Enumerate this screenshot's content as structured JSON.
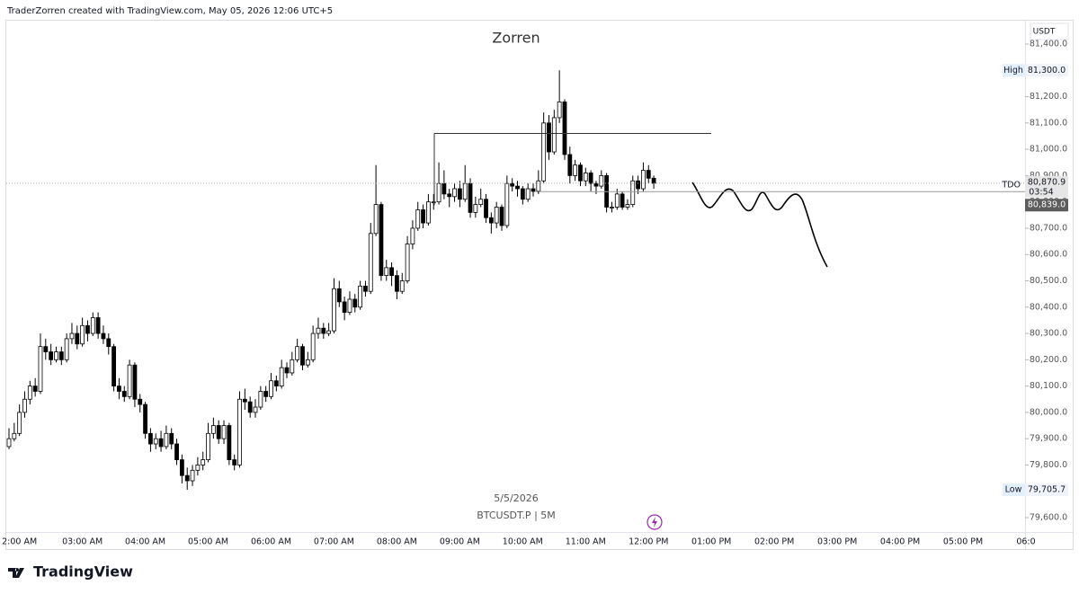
{
  "header": "TraderZorren created with TradingView.com, May 05, 2026 12:06 UTC+5",
  "brand": "TradingView",
  "chart_data": {
    "type": "candlestick",
    "title": "Zorren",
    "date": "5/5/2026",
    "symbol": "BTCUSDT.P | 5M",
    "currency": "USDT",
    "up_color": "#ffffff",
    "down_color": "#000000",
    "x_labels": [
      "2:00 AM",
      "03:00 AM",
      "04:00 AM",
      "05:00 AM",
      "06:00 AM",
      "07:00 AM",
      "08:00 AM",
      "09:00 AM",
      "10:00 AM",
      "11:00 AM",
      "12:00 PM",
      "01:00 PM",
      "02:00 PM",
      "03:00 PM",
      "04:00 PM",
      "05:00 PM",
      "06:0"
    ],
    "ylim": [
      79600,
      81400
    ],
    "yticks": [
      {
        "value": 81400,
        "label": "81,400.0"
      },
      {
        "value": 81300,
        "label": "81,300.0"
      },
      {
        "value": 81200,
        "label": "81,200.0"
      },
      {
        "value": 81100,
        "label": "81,100.0"
      },
      {
        "value": 81000,
        "label": "81,000.0"
      },
      {
        "value": 80900,
        "label": "80,900.0"
      },
      {
        "value": 80800,
        "label": "80,800.0"
      },
      {
        "value": 80700,
        "label": "80,700.0"
      },
      {
        "value": 80600,
        "label": "80,600.0"
      },
      {
        "value": 80500,
        "label": "80,500.0"
      },
      {
        "value": 80400,
        "label": "80,400.0"
      },
      {
        "value": 80300,
        "label": "80,300.0"
      },
      {
        "value": 80200,
        "label": "80,200.0"
      },
      {
        "value": 80100,
        "label": "80,100.0"
      },
      {
        "value": 80000,
        "label": "80,000.0"
      },
      {
        "value": 79900,
        "label": "79,900.0"
      },
      {
        "value": 79800,
        "label": "79,800.0"
      },
      {
        "value": 79700,
        "label": "79,700.0"
      },
      {
        "value": 79600,
        "label": "79,600.0"
      }
    ],
    "high": {
      "label": "High",
      "value": 81300,
      "value_label": "81,300.0"
    },
    "low": {
      "label": "Low",
      "value": 79705.7,
      "value_label": "79,705.7"
    },
    "last_price": {
      "value": 80870.9,
      "value_label": "80,870.9",
      "countdown": "03:54"
    },
    "tdo": {
      "label": "TDO",
      "value": 80839,
      "value_label": "80,839.0"
    },
    "level": 81060,
    "ohlc": [
      [
        79870,
        79940,
        79860,
        79900
      ],
      [
        79900,
        79960,
        79890,
        79920
      ],
      [
        79920,
        80030,
        79910,
        80000
      ],
      [
        80000,
        80080,
        79980,
        80050
      ],
      [
        80050,
        80120,
        80030,
        80100
      ],
      [
        80100,
        80130,
        80060,
        80080
      ],
      [
        80080,
        80300,
        80070,
        80250
      ],
      [
        80250,
        80280,
        80200,
        80230
      ],
      [
        80230,
        80260,
        80180,
        80200
      ],
      [
        80200,
        80250,
        80190,
        80230
      ],
      [
        80230,
        80250,
        80180,
        80200
      ],
      [
        80200,
        80300,
        80190,
        80280
      ],
      [
        80280,
        80340,
        80260,
        80300
      ],
      [
        80300,
        80330,
        80240,
        80260
      ],
      [
        80260,
        80360,
        80250,
        80330
      ],
      [
        80330,
        80350,
        80270,
        80300
      ],
      [
        80300,
        80380,
        80290,
        80360
      ],
      [
        80360,
        80380,
        80280,
        80300
      ],
      [
        80300,
        80330,
        80260,
        80280
      ],
      [
        80280,
        80300,
        80220,
        80250
      ],
      [
        80250,
        80260,
        80080,
        80100
      ],
      [
        80100,
        80130,
        80050,
        80080
      ],
      [
        80080,
        80100,
        80040,
        80060
      ],
      [
        80060,
        80200,
        80050,
        80180
      ],
      [
        80180,
        80190,
        80020,
        80050
      ],
      [
        80050,
        80070,
        80000,
        80030
      ],
      [
        80030,
        80040,
        79900,
        79920
      ],
      [
        79920,
        79940,
        79850,
        79880
      ],
      [
        79880,
        79920,
        79860,
        79900
      ],
      [
        79900,
        79930,
        79850,
        79870
      ],
      [
        79870,
        79950,
        79860,
        79920
      ],
      [
        79920,
        79940,
        79860,
        79880
      ],
      [
        79880,
        79900,
        79800,
        79820
      ],
      [
        79820,
        79840,
        79730,
        79760
      ],
      [
        79760,
        79790,
        79706,
        79740
      ],
      [
        79740,
        79800,
        79720,
        79780
      ],
      [
        79780,
        79830,
        79760,
        79800
      ],
      [
        79800,
        79850,
        79780,
        79820
      ],
      [
        79820,
        79960,
        79810,
        79920
      ],
      [
        79920,
        79980,
        79900,
        79950
      ],
      [
        79950,
        79970,
        79880,
        79900
      ],
      [
        79900,
        79970,
        79880,
        79950
      ],
      [
        79950,
        79960,
        79800,
        79820
      ],
      [
        79820,
        79840,
        79780,
        79800
      ],
      [
        79800,
        80080,
        79790,
        80050
      ],
      [
        80050,
        80090,
        80010,
        80040
      ],
      [
        80040,
        80060,
        79980,
        80000
      ],
      [
        80000,
        80050,
        79980,
        80020
      ],
      [
        80020,
        80100,
        80010,
        80080
      ],
      [
        80080,
        80100,
        80040,
        80060
      ],
      [
        80060,
        80150,
        80050,
        80120
      ],
      [
        80120,
        80140,
        80080,
        80100
      ],
      [
        80100,
        80200,
        80090,
        80170
      ],
      [
        80170,
        80190,
        80130,
        80150
      ],
      [
        80150,
        80230,
        80140,
        80200
      ],
      [
        80200,
        80280,
        80190,
        80250
      ],
      [
        80250,
        80260,
        80160,
        80180
      ],
      [
        80180,
        80230,
        80170,
        80200
      ],
      [
        80200,
        80330,
        80190,
        80300
      ],
      [
        80300,
        80360,
        80280,
        80320
      ],
      [
        80320,
        80340,
        80280,
        80300
      ],
      [
        80300,
        80340,
        80290,
        80310
      ],
      [
        80310,
        80510,
        80300,
        80470
      ],
      [
        80470,
        80500,
        80400,
        80420
      ],
      [
        80420,
        80440,
        80350,
        80380
      ],
      [
        80380,
        80460,
        80370,
        80430
      ],
      [
        80430,
        80450,
        80380,
        80400
      ],
      [
        80400,
        80500,
        80390,
        80480
      ],
      [
        80480,
        80500,
        80440,
        80460
      ],
      [
        80460,
        80720,
        80450,
        80680
      ],
      [
        80680,
        80940,
        80670,
        80790
      ],
      [
        80790,
        80800,
        80500,
        80520
      ],
      [
        80520,
        80580,
        80500,
        80550
      ],
      [
        80550,
        80570,
        80480,
        80520
      ],
      [
        80520,
        80540,
        80430,
        80460
      ],
      [
        80460,
        80530,
        80450,
        80500
      ],
      [
        80500,
        80670,
        80490,
        80640
      ],
      [
        80640,
        80730,
        80620,
        80700
      ],
      [
        80700,
        80800,
        80690,
        80770
      ],
      [
        80770,
        80790,
        80700,
        80720
      ],
      [
        80720,
        80830,
        80710,
        80800
      ],
      [
        80800,
        80830,
        80770,
        80800
      ],
      [
        80800,
        80950,
        80790,
        80870
      ],
      [
        80870,
        80920,
        80810,
        80830
      ],
      [
        80830,
        80850,
        80780,
        80820
      ],
      [
        80820,
        80870,
        80800,
        80850
      ],
      [
        80850,
        80880,
        80780,
        80810
      ],
      [
        80810,
        80940,
        80800,
        80870
      ],
      [
        80870,
        80890,
        80740,
        80760
      ],
      [
        80760,
        80820,
        80740,
        80790
      ],
      [
        80790,
        80850,
        80780,
        80810
      ],
      [
        80810,
        80830,
        80720,
        80740
      ],
      [
        80740,
        80760,
        80680,
        80720
      ],
      [
        80720,
        80800,
        80700,
        80780
      ],
      [
        80780,
        80790,
        80690,
        80710
      ],
      [
        80710,
        80900,
        80700,
        80870
      ],
      [
        80870,
        80890,
        80840,
        80860
      ],
      [
        80860,
        80880,
        80820,
        80850
      ],
      [
        80850,
        80860,
        80790,
        80810
      ],
      [
        80810,
        80870,
        80800,
        80850
      ],
      [
        80850,
        80870,
        80820,
        80840
      ],
      [
        80840,
        80920,
        80830,
        80880
      ],
      [
        80880,
        81140,
        80870,
        81100
      ],
      [
        81100,
        81130,
        80960,
        80990
      ],
      [
        80990,
        81150,
        80980,
        81120
      ],
      [
        81120,
        81300,
        81100,
        81180
      ],
      [
        81180,
        81190,
        80960,
        80980
      ],
      [
        80980,
        81010,
        80870,
        80900
      ],
      [
        80900,
        80960,
        80880,
        80940
      ],
      [
        80940,
        80950,
        80860,
        80880
      ],
      [
        80880,
        80930,
        80860,
        80910
      ],
      [
        80910,
        80920,
        80840,
        80870
      ],
      [
        80870,
        80880,
        80830,
        80860
      ],
      [
        80860,
        80920,
        80850,
        80900
      ],
      [
        80900,
        80910,
        80760,
        80780
      ],
      [
        80780,
        80800,
        80760,
        80780
      ],
      [
        80780,
        80850,
        80770,
        80830
      ],
      [
        80830,
        80840,
        80770,
        80780
      ],
      [
        80780,
        80810,
        80770,
        80790
      ],
      [
        80790,
        80900,
        80780,
        80880
      ],
      [
        80880,
        80900,
        80830,
        80850
      ],
      [
        80850,
        80950,
        80840,
        80920
      ],
      [
        80920,
        80940,
        80870,
        80890
      ],
      [
        80890,
        80900,
        80850,
        80870.9
      ]
    ]
  }
}
